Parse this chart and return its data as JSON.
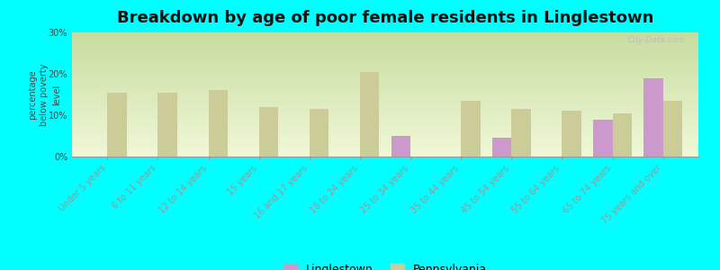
{
  "title": "Breakdown by age of poor female residents in Linglestown",
  "categories": [
    "Under 5 years",
    "6 to 11 years",
    "12 to 14 years",
    "15 years",
    "16 and 17 years",
    "18 to 24 years",
    "25 to 34 years",
    "35 to 44 years",
    "45 to 54 years",
    "55 to 64 years",
    "65 to 74 years",
    "75 years and over"
  ],
  "linglestown": [
    null,
    null,
    null,
    null,
    null,
    null,
    5.0,
    null,
    4.5,
    null,
    9.0,
    19.0
  ],
  "pennsylvania": [
    15.5,
    15.5,
    16.0,
    12.0,
    11.5,
    20.5,
    null,
    13.5,
    11.5,
    11.0,
    10.5,
    13.5
  ],
  "linglestown_color": "#cc99cc",
  "pennsylvania_color": "#cccc99",
  "background_color": "#00ffff",
  "plot_bg_top": "#c8dca0",
  "plot_bg_bottom": "#f0f8d8",
  "ylabel": "percentage\nbelow poverty\nlevel",
  "ylim": [
    0,
    30
  ],
  "yticks": [
    0,
    10,
    20,
    30
  ],
  "bar_width": 0.38,
  "title_fontsize": 13,
  "axis_label_fontsize": 7,
  "tick_fontsize": 7,
  "watermark": "City-Data.com"
}
